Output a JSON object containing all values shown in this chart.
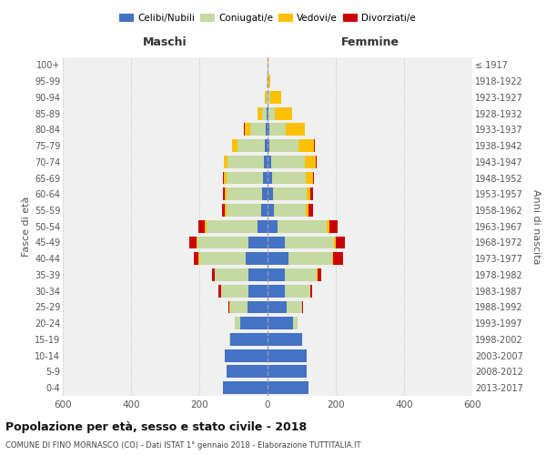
{
  "age_groups": [
    "0-4",
    "5-9",
    "10-14",
    "15-19",
    "20-24",
    "25-29",
    "30-34",
    "35-39",
    "40-44",
    "45-49",
    "50-54",
    "55-59",
    "60-64",
    "65-69",
    "70-74",
    "75-79",
    "80-84",
    "85-89",
    "90-94",
    "95-99",
    "100+"
  ],
  "birth_years": [
    "2013-2017",
    "2008-2012",
    "2003-2007",
    "1998-2002",
    "1993-1997",
    "1988-1992",
    "1983-1987",
    "1978-1982",
    "1973-1977",
    "1968-1972",
    "1963-1967",
    "1958-1962",
    "1953-1957",
    "1948-1952",
    "1943-1947",
    "1938-1942",
    "1933-1937",
    "1928-1932",
    "1923-1927",
    "1918-1922",
    "≤ 1917"
  ],
  "maschi": {
    "celibi": [
      130,
      120,
      125,
      110,
      80,
      60,
      55,
      55,
      65,
      55,
      30,
      20,
      16,
      14,
      12,
      8,
      5,
      2,
      0,
      0,
      0
    ],
    "coniugati": [
      0,
      0,
      0,
      2,
      15,
      50,
      80,
      100,
      135,
      150,
      150,
      100,
      105,
      105,
      105,
      80,
      45,
      15,
      4,
      2,
      1
    ],
    "vedovi": [
      0,
      0,
      0,
      0,
      1,
      1,
      1,
      1,
      2,
      4,
      4,
      5,
      5,
      8,
      10,
      15,
      18,
      12,
      4,
      1,
      0
    ],
    "divorziati": [
      0,
      0,
      0,
      0,
      1,
      3,
      8,
      8,
      15,
      20,
      20,
      8,
      5,
      3,
      2,
      1,
      1,
      0,
      0,
      0,
      0
    ]
  },
  "femmine": {
    "nubili": [
      120,
      115,
      115,
      100,
      75,
      55,
      50,
      50,
      60,
      50,
      28,
      18,
      15,
      12,
      10,
      6,
      4,
      2,
      1,
      0,
      0
    ],
    "coniugate": [
      0,
      0,
      0,
      2,
      12,
      45,
      75,
      95,
      130,
      145,
      145,
      95,
      100,
      100,
      100,
      85,
      50,
      20,
      8,
      3,
      1
    ],
    "vedove": [
      0,
      0,
      0,
      0,
      1,
      1,
      1,
      1,
      2,
      6,
      8,
      8,
      10,
      20,
      30,
      45,
      55,
      50,
      30,
      5,
      1
    ],
    "divorziate": [
      0,
      0,
      0,
      0,
      1,
      3,
      5,
      10,
      30,
      25,
      25,
      12,
      8,
      5,
      3,
      2,
      1,
      0,
      0,
      0,
      0
    ]
  },
  "color_celibi": "#4472c4",
  "color_coniugati": "#c5d9a0",
  "color_vedovi": "#ffc000",
  "color_divorziati": "#cc0000",
  "xlim": 600,
  "title": "Popolazione per età, sesso e stato civile - 2018",
  "subtitle": "COMUNE DI FINO MORNASCO (CO) - Dati ISTAT 1° gennaio 2018 - Elaborazione TUTTITALIA.IT",
  "ylabel": "Fasce di età",
  "ylabel_right": "Anni di nascita",
  "xlabel_left": "Maschi",
  "xlabel_right": "Femmine",
  "bg_color": "#f0f0f0",
  "grid_color": "#cccccc"
}
